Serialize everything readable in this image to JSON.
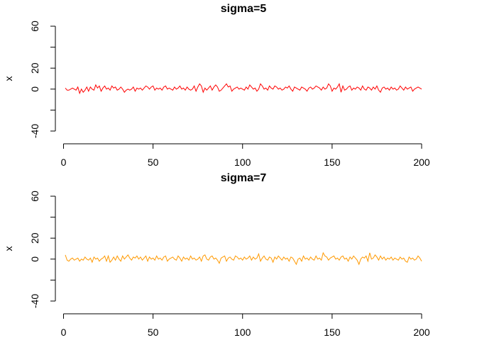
{
  "chart_data": [
    {
      "type": "line",
      "title": "sigma=5",
      "xlabel": "",
      "ylabel": "x",
      "xlim": [
        1,
        200
      ],
      "ylim": [
        -40,
        60
      ],
      "xticks": [
        0,
        50,
        100,
        150,
        200
      ],
      "yticks": [
        -40,
        -20,
        0,
        20,
        40,
        60
      ],
      "ytick_labels": [
        "-40",
        "",
        "0",
        "20",
        "",
        "60"
      ],
      "grid": false,
      "color": "#ff0000",
      "series": [
        {
          "x_start": 1,
          "values": [
            1,
            -1,
            -1,
            0,
            1,
            0,
            -1,
            2,
            -4,
            0,
            -3,
            -1,
            2,
            -2,
            2,
            0,
            -1,
            4,
            1,
            3,
            -2,
            1,
            3,
            0,
            1,
            -1,
            3,
            1,
            2,
            -1,
            0,
            2,
            0,
            -3,
            -1,
            0,
            -1,
            0,
            2,
            -2,
            1,
            0,
            1,
            -1,
            1,
            3,
            2,
            0,
            2,
            3,
            -1,
            1,
            0,
            1,
            -1,
            2,
            3,
            0,
            1,
            0,
            -1,
            2,
            0,
            1,
            3,
            0,
            1,
            -1,
            2,
            0,
            -1,
            0,
            3,
            -2,
            2,
            5,
            3,
            -3,
            1,
            -1,
            1,
            3,
            -1,
            2,
            4,
            2,
            -2,
            -1,
            1,
            3,
            5,
            2,
            3,
            -2,
            0,
            1,
            2,
            0,
            1,
            0,
            -1,
            2,
            0,
            4,
            2,
            0,
            1,
            -2,
            0,
            5,
            3,
            0,
            1,
            -1,
            3,
            1,
            0,
            3,
            2,
            0,
            1,
            -1,
            0,
            2,
            1,
            3,
            0,
            -2,
            2,
            1,
            0,
            -1,
            2,
            1,
            0,
            -2,
            1,
            2,
            0,
            1,
            3,
            2,
            1,
            -1,
            2,
            0,
            1,
            5,
            3,
            -2,
            1,
            0,
            2,
            5,
            -3,
            3,
            -1,
            0,
            2,
            3,
            -1,
            1,
            0,
            2,
            1,
            -1,
            3,
            0,
            -1,
            2,
            1,
            -1,
            2,
            0,
            3,
            -1,
            -3,
            1,
            2,
            0,
            1,
            -1,
            2,
            0,
            1,
            -1,
            0,
            3,
            1,
            -1,
            2,
            0,
            1,
            2,
            -2,
            0,
            1,
            2,
            1,
            0
          ]
        }
      ]
    },
    {
      "type": "line",
      "title": "sigma=7",
      "xlabel": "",
      "ylabel": "x",
      "xlim": [
        1,
        200
      ],
      "ylim": [
        -40,
        60
      ],
      "xticks": [
        0,
        50,
        100,
        150,
        200
      ],
      "yticks": [
        -40,
        -20,
        0,
        20,
        40,
        60
      ],
      "ytick_labels": [
        "-40",
        "",
        "0",
        "20",
        "",
        "60"
      ],
      "grid": false,
      "color": "#ff9900",
      "series": [
        {
          "x_start": 1,
          "values": [
            4,
            -1,
            -2,
            0,
            1,
            -1,
            0,
            1,
            -2,
            0,
            -1,
            2,
            0,
            -1,
            1,
            -3,
            2,
            0,
            1,
            -2,
            0,
            1,
            3,
            -2,
            3,
            -3,
            -1,
            2,
            -1,
            3,
            0,
            -2,
            3,
            0,
            2,
            4,
            1,
            -1,
            2,
            1,
            3,
            0,
            2,
            -1,
            1,
            3,
            -2,
            2,
            0,
            1,
            -1,
            3,
            0,
            1,
            -1,
            2,
            3,
            -2,
            0,
            1,
            2,
            0,
            -1,
            3,
            1,
            -2,
            2,
            0,
            1,
            -1,
            3,
            0,
            1,
            -1,
            0,
            2,
            -2,
            3,
            4,
            0,
            -1,
            2,
            3,
            0,
            1,
            -1,
            -4,
            1,
            2,
            3,
            -2,
            1,
            2,
            0,
            -1,
            3,
            2,
            0,
            1,
            -1,
            2,
            0,
            1,
            3,
            -1,
            2,
            0,
            1,
            5,
            -2,
            1,
            3,
            0,
            -1,
            2,
            1,
            -3,
            2,
            0,
            3,
            1,
            -1,
            2,
            0,
            1,
            -2,
            2,
            1,
            -2,
            -5,
            0,
            1,
            -2,
            3,
            0,
            1,
            -1,
            2,
            0,
            -1,
            3,
            0,
            1,
            -1,
            6,
            3,
            2,
            -1,
            1,
            2,
            3,
            0,
            1,
            -1,
            2,
            3,
            0,
            1,
            -2,
            2,
            0,
            3,
            1,
            -1,
            -5,
            0,
            2,
            1,
            3,
            -2,
            6,
            0,
            1,
            4,
            2,
            -1,
            3,
            0,
            2,
            -1,
            1,
            0,
            2,
            -1,
            1,
            0,
            -1,
            2,
            0,
            1,
            -2,
            -3,
            2,
            0,
            1,
            -1,
            0,
            3,
            1,
            -2
          ]
        }
      ]
    }
  ]
}
